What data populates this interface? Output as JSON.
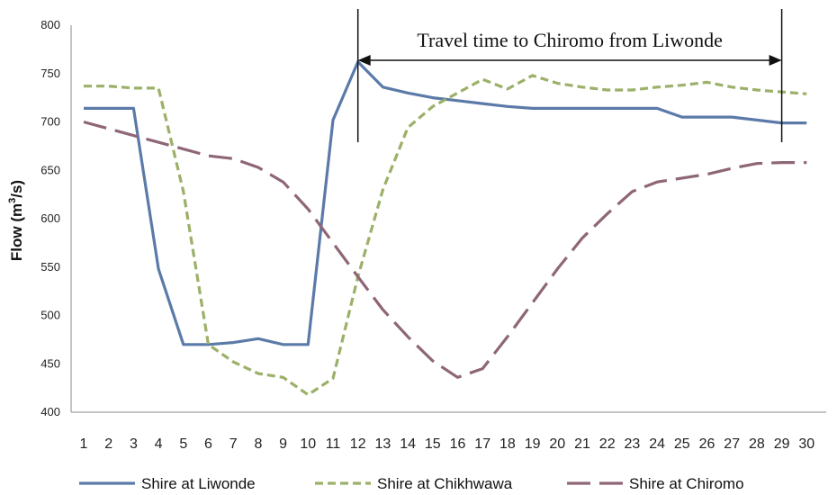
{
  "chart_data": {
    "type": "line",
    "ylabel_main": "Flow (m",
    "ylabel_sup": "3",
    "ylabel_tail": "/s)",
    "ylim": [
      400,
      800
    ],
    "yticks": [
      400,
      450,
      500,
      550,
      600,
      650,
      700,
      750,
      800
    ],
    "x": [
      1,
      2,
      3,
      4,
      5,
      6,
      7,
      8,
      9,
      10,
      11,
      12,
      13,
      14,
      15,
      16,
      17,
      18,
      19,
      20,
      21,
      22,
      23,
      24,
      25,
      26,
      27,
      28,
      29,
      30
    ],
    "grid": false,
    "legend_position": "bottom",
    "annotation": {
      "text": "Travel time to Chiromo from Liwonde",
      "from_x": 12,
      "to_x": 29
    },
    "series": [
      {
        "name": "Shire at Liwonde",
        "color": "#5b7aa8",
        "style": "solid",
        "values": [
          714,
          714,
          714,
          548,
          470,
          470,
          472,
          476,
          470,
          470,
          702,
          762,
          736,
          730,
          725,
          722,
          719,
          716,
          714,
          714,
          714,
          714,
          714,
          714,
          705,
          705,
          705,
          702,
          699,
          699
        ]
      },
      {
        "name": "Shire at Chikhwawa",
        "color": "#9bb068",
        "style": "dashed",
        "values": [
          737,
          737,
          735,
          735,
          628,
          470,
          452,
          440,
          436,
          418,
          435,
          540,
          630,
          694,
          716,
          730,
          744,
          734,
          748,
          740,
          736,
          733,
          733,
          736,
          738,
          741,
          736,
          733,
          731,
          729
        ]
      },
      {
        "name": "Shire at Chiromo",
        "color": "#8e6677",
        "style": "longdash",
        "values": [
          700,
          693,
          686,
          679,
          672,
          665,
          662,
          653,
          638,
          610,
          575,
          540,
          506,
          478,
          453,
          436,
          445,
          478,
          513,
          548,
          580,
          605,
          628,
          638,
          642,
          646,
          652,
          657,
          658,
          658
        ]
      }
    ]
  }
}
